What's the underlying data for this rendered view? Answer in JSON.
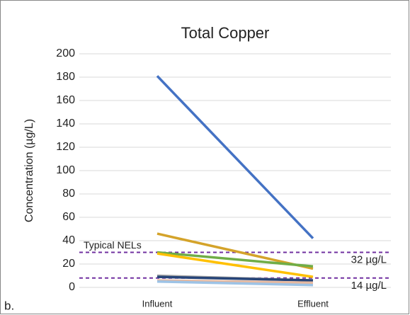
{
  "chart_data": {
    "type": "line",
    "title": "Total Copper",
    "y_label": "Concentration (µg/L)",
    "categories": [
      "Influent",
      "Effluent"
    ],
    "series": [
      {
        "color": "#4472c4",
        "values": [
          181,
          42
        ]
      },
      {
        "color": "#d4a32a",
        "values": [
          46,
          16
        ]
      },
      {
        "color": "#70ad47",
        "values": [
          30,
          18
        ]
      },
      {
        "color": "#ffc000",
        "values": [
          29,
          9
        ]
      },
      {
        "color": "#a5a5a5",
        "values": [
          10,
          6
        ]
      },
      {
        "color": "#264478",
        "values": [
          9,
          6
        ]
      },
      {
        "color": "#e6b9a0",
        "values": [
          6,
          4
        ]
      },
      {
        "color": "#9dc3e6",
        "values": [
          5,
          2
        ]
      }
    ],
    "ylim": [
      0,
      200
    ],
    "yticks": [
      0,
      20,
      40,
      60,
      80,
      100,
      120,
      140,
      160,
      180,
      200
    ],
    "grid": true,
    "reference_lines": [
      30,
      8
    ],
    "reference_color": "#7030a0",
    "annotations": [
      "Typical NELs",
      "32 µg/L",
      "14 µg/L"
    ],
    "panel_label": "b."
  }
}
